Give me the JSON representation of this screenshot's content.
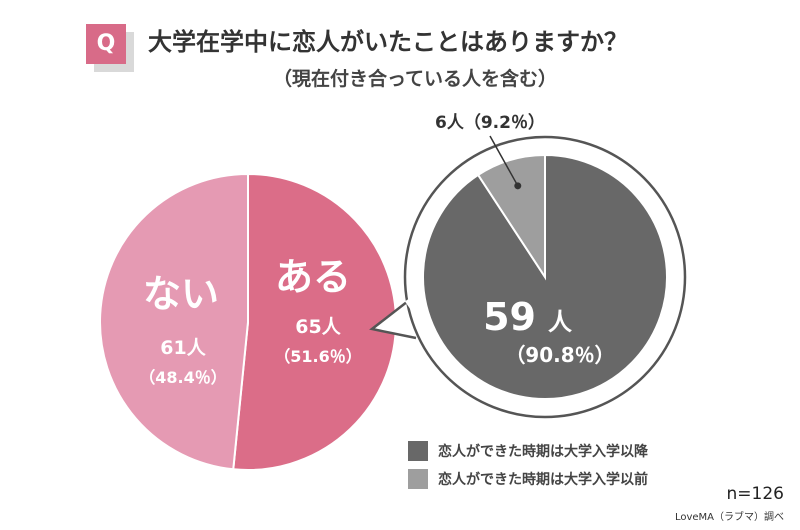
{
  "header": {
    "badge": "Q",
    "title": "大学在学中に恋人がいたことはありますか？",
    "subtitle": "（現在付き合っている人を含む）"
  },
  "chart_data": [
    {
      "type": "pie",
      "slices": [
        {
          "label": "ある",
          "count_label": "65人",
          "value": 65,
          "percent_label": "（51.6％）",
          "percent": 51.6,
          "color": "#db6d88"
        },
        {
          "label": "ない",
          "count_label": "61人",
          "value": 61,
          "percent_label": "（48.4％）",
          "percent": 48.4,
          "color": "#e59ab3"
        }
      ]
    },
    {
      "type": "pie",
      "slices": [
        {
          "label": "恋人ができた時期は大学入学以降",
          "count_label": "59人",
          "value": 59,
          "percent_label": "（90.8％）",
          "percent": 90.8,
          "color": "#686868"
        },
        {
          "label": "恋人ができた時期は大学入学以前",
          "count_label": "6人",
          "value": 6,
          "percent_label": "（9.2％）",
          "percent": 9.2,
          "color": "#9e9e9e"
        }
      ]
    }
  ],
  "legend": [
    {
      "label": "恋人ができた時期は大学入学以降",
      "color": "#686868"
    },
    {
      "label": "恋人ができた時期は大学入学以前",
      "color": "#9e9e9e"
    }
  ],
  "footer": {
    "n": "n=126",
    "credit": "LoveMA（ラブマ）調べ"
  }
}
